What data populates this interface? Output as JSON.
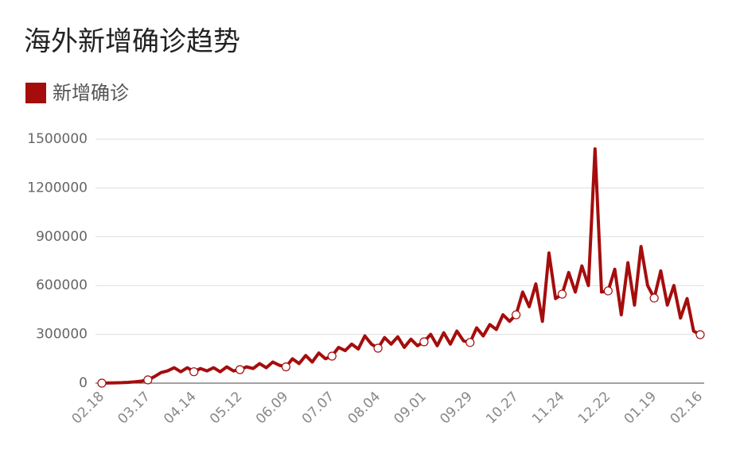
{
  "chart_data": {
    "type": "line",
    "title": "海外新增确诊趋势",
    "categories": [
      "02.18",
      null,
      null,
      null,
      null,
      null,
      null,
      "03.17",
      null,
      null,
      null,
      null,
      null,
      null,
      "04.14",
      null,
      null,
      null,
      null,
      null,
      null,
      "05.12",
      null,
      null,
      null,
      null,
      null,
      null,
      "06.09",
      null,
      null,
      null,
      null,
      null,
      null,
      "07.07",
      null,
      null,
      null,
      null,
      null,
      null,
      "08.04",
      null,
      null,
      null,
      null,
      null,
      null,
      "09.01",
      null,
      null,
      null,
      null,
      null,
      null,
      "09.29",
      null,
      null,
      null,
      null,
      null,
      null,
      "10.27",
      null,
      null,
      null,
      null,
      null,
      null,
      "11.24",
      null,
      null,
      null,
      null,
      null,
      null,
      "12.22",
      null,
      null,
      null,
      null,
      null,
      null,
      "01.19",
      null,
      null,
      null,
      null,
      null,
      null,
      "02.16"
    ],
    "series": [
      {
        "name": "新增确诊",
        "color": "#a50d0d",
        "values": [
          0,
          1000,
          2000,
          3000,
          5000,
          8000,
          12000,
          20000,
          40000,
          65000,
          75000,
          95000,
          70000,
          95000,
          70000,
          90000,
          75000,
          95000,
          70000,
          100000,
          75000,
          83000,
          100000,
          90000,
          120000,
          95000,
          130000,
          110000,
          100000,
          150000,
          120000,
          170000,
          130000,
          185000,
          150000,
          166000,
          220000,
          200000,
          240000,
          210000,
          290000,
          240000,
          215000,
          280000,
          240000,
          285000,
          220000,
          270000,
          230000,
          254000,
          300000,
          230000,
          310000,
          240000,
          320000,
          260000,
          250000,
          340000,
          290000,
          360000,
          330000,
          420000,
          380000,
          420000,
          560000,
          470000,
          610000,
          380000,
          800000,
          520000,
          547000,
          680000,
          560000,
          720000,
          600000,
          1440000,
          560000,
          567000,
          700000,
          420000,
          740000,
          480000,
          840000,
          600000,
          523000,
          690000,
          480000,
          600000,
          400000,
          520000,
          320000,
          298000
        ]
      }
    ],
    "ylim": [
      0,
      1500000
    ],
    "yticks": [
      0,
      300000,
      600000,
      900000,
      1200000,
      1500000
    ],
    "grid": true,
    "legend": "top-left"
  }
}
